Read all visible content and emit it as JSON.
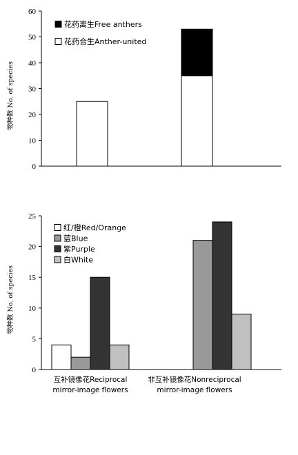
{
  "chart_data": [
    {
      "type": "bar",
      "stacked": true,
      "ylabel": "物种数 No. of species",
      "ylim": [
        0,
        60
      ],
      "yticks": [
        0,
        10,
        20,
        30,
        40,
        50,
        60
      ],
      "categories": [
        "",
        ""
      ],
      "series": [
        {
          "name": "花药合生Anther-united",
          "color": "#ffffff",
          "values": [
            25,
            35
          ]
        },
        {
          "name": "花药离生Free anthers",
          "color": "#000000",
          "values": [
            0,
            18
          ]
        }
      ],
      "legend_order": [
        1,
        0
      ],
      "legend": "top-left",
      "grid": false
    },
    {
      "type": "bar",
      "stacked": false,
      "ylabel": "物种数 No. of species",
      "ylim": [
        0,
        25
      ],
      "yticks": [
        0,
        5,
        10,
        15,
        20,
        25
      ],
      "categories": [
        [
          "互补镜像花Reciprocal",
          "mirror-image flowers"
        ],
        [
          "非互补镜像花Nonreciprocal",
          "mirror-image flowers"
        ]
      ],
      "series": [
        {
          "name": "红/橙Red/Orange",
          "color": "#ffffff",
          "values": [
            4,
            0
          ]
        },
        {
          "name": "蓝Blue",
          "color": "#999999",
          "values": [
            2,
            21
          ]
        },
        {
          "name": "紫Purple",
          "color": "#333333",
          "values": [
            15,
            24
          ]
        },
        {
          "name": "白White",
          "color": "#c0c0c0",
          "values": [
            4,
            9
          ]
        }
      ],
      "legend": "top-left",
      "grid": false
    }
  ]
}
